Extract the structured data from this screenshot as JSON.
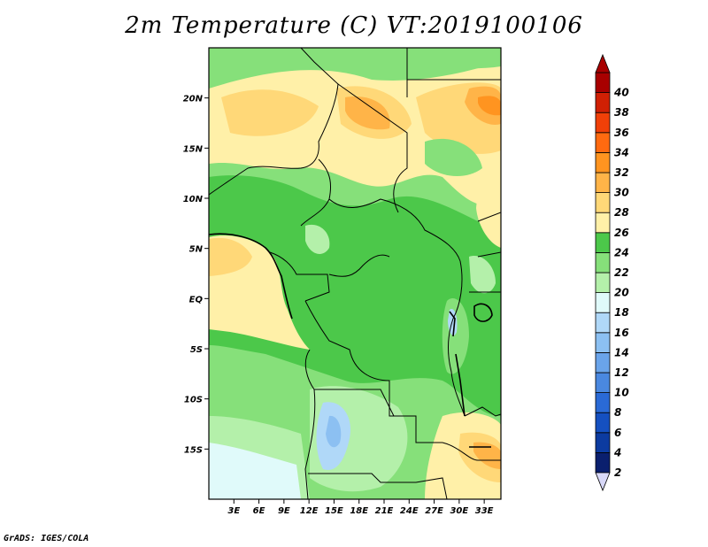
{
  "title": "2m Temperature (C) VT:2019100106",
  "credit": "GrADS: IGES/COLA",
  "map": {
    "lon_range": [
      0,
      35
    ],
    "lat_range": [
      -20,
      25
    ],
    "lon_ticks": [
      "3E",
      "6E",
      "9E",
      "12E",
      "15E",
      "18E",
      "21E",
      "24E",
      "27E",
      "30E",
      "33E"
    ],
    "lat_ticks": [
      "20N",
      "15N",
      "10N",
      "5N",
      "EQ",
      "5S",
      "10S",
      "15S"
    ]
  },
  "colorbar": {
    "levels": [
      "2",
      "4",
      "6",
      "8",
      "10",
      "12",
      "14",
      "16",
      "18",
      "20",
      "22",
      "24",
      "26",
      "28",
      "30",
      "32",
      "34",
      "36",
      "38",
      "40"
    ],
    "colors": [
      "#0a1f6e",
      "#0c3ba0",
      "#1550c0",
      "#2a6ad6",
      "#4a88e0",
      "#6aa4ea",
      "#8cc0f2",
      "#b0d8f8",
      "#e0fafa",
      "#b4f0aa",
      "#86e07a",
      "#4cc84a",
      "#fff0a8",
      "#ffd878",
      "#ffb448",
      "#ff9420",
      "#ff6a10",
      "#f04008",
      "#d02004",
      "#a80000"
    ],
    "under_color": "#d8d8f8",
    "over_color": "#a80000"
  }
}
